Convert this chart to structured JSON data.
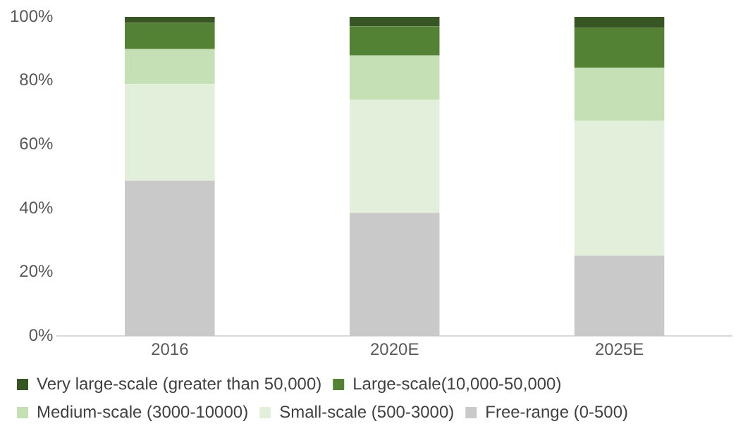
{
  "chart_data": {
    "type": "bar",
    "stacked": true,
    "categories": [
      "2016",
      "2020E",
      "2025E"
    ],
    "series": [
      {
        "name": "Free-range (0-500)",
        "color": "#c9c9c9",
        "values": [
          48.7,
          38.6,
          25.2
        ]
      },
      {
        "name": "Small-scale (500-3000)",
        "color": "#e2efda",
        "values": [
          30.3,
          35.4,
          42.2
        ]
      },
      {
        "name": "Medium-scale (3000-10000)",
        "color": "#c5e0b4",
        "values": [
          10.9,
          13.9,
          16.7
        ]
      },
      {
        "name": "Large-scale(10,000-50,000)",
        "color": "#548235",
        "values": [
          8.3,
          9.1,
          12.4
        ]
      },
      {
        "name": "Very large-scale (greater than 50,000)",
        "color": "#375623",
        "values": [
          1.8,
          3.0,
          3.5
        ]
      }
    ],
    "ylim": [
      0,
      100
    ],
    "yticks": [
      {
        "value": 0,
        "label": "0%"
      },
      {
        "value": 20,
        "label": "20%"
      },
      {
        "value": 40,
        "label": "40%"
      },
      {
        "value": 60,
        "label": "60%"
      },
      {
        "value": 80,
        "label": "80%"
      },
      {
        "value": 100,
        "label": "100%"
      }
    ],
    "grid": false,
    "legend": "bottom"
  }
}
